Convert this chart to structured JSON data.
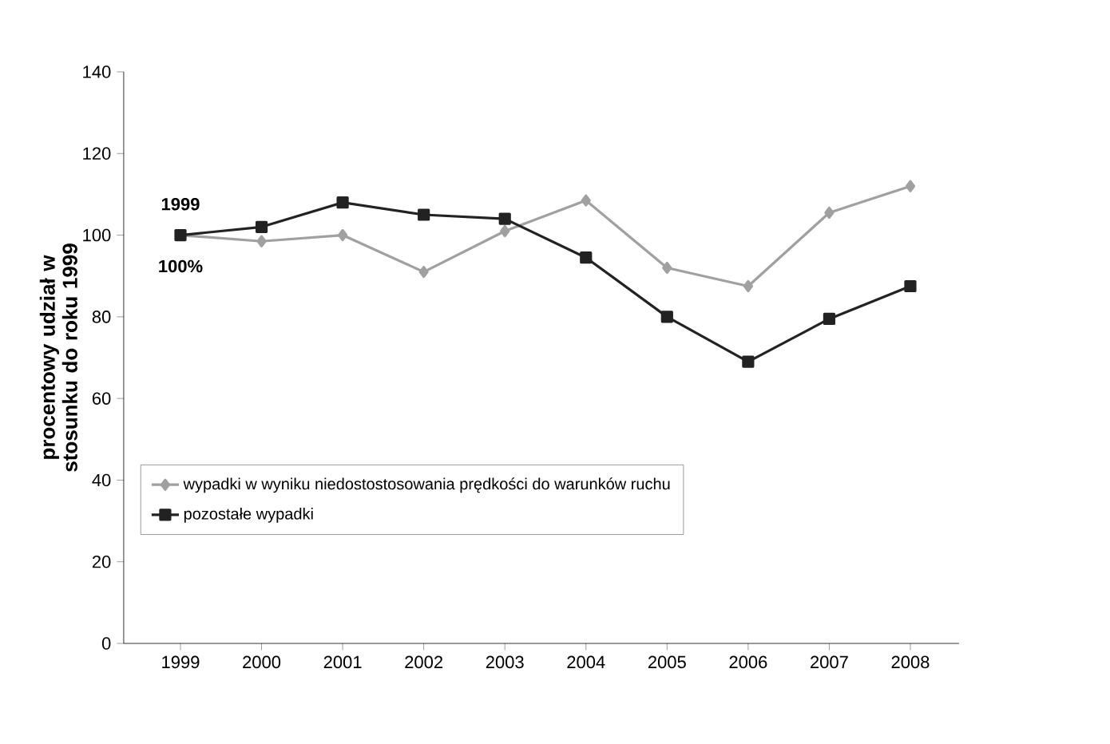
{
  "chart_data": {
    "type": "line",
    "ylabel": "procentowy udział w stosunku do roku 1999",
    "categories": [
      "1999",
      "2000",
      "2001",
      "2002",
      "2003",
      "2004",
      "2005",
      "2006",
      "2007",
      "2008"
    ],
    "series": [
      {
        "name": "wypadki w wyniku niedostostosowania  prędkości do warunków ruchu",
        "color": "#a0a0a0",
        "marker": "diamond",
        "values": [
          100,
          98.5,
          100,
          91,
          101,
          108.5,
          92,
          87.5,
          105.5,
          112
        ]
      },
      {
        "name": "pozostałe  wypadki",
        "color": "#222222",
        "marker": "square",
        "values": [
          100,
          102,
          108,
          105,
          104,
          94.5,
          80,
          69,
          79.5,
          87.5
        ]
      }
    ],
    "ylim": [
      0,
      140
    ],
    "yticks": [
      0,
      20,
      40,
      60,
      80,
      100,
      120,
      140
    ],
    "annotations": [
      {
        "text": "1999",
        "x": "1999",
        "y": 100
      },
      {
        "text": "100%",
        "x": "1999",
        "y": 100
      }
    ],
    "legend": "bottom left",
    "grid": false,
    "line_style": "solid"
  }
}
